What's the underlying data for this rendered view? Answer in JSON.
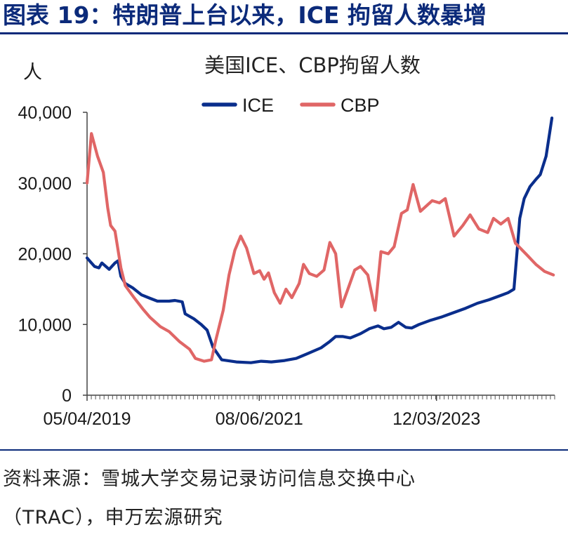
{
  "header": {
    "title": "图表 19：特朗普上台以来，ICE 拘留人数暴增"
  },
  "source": {
    "line1": "资料来源：雪城大学交易记录访问信息交换中心",
    "line2": "（TRAC），申万宏源研究"
  },
  "colors": {
    "header": "#0b2a7a",
    "ice": "#0a2e8c",
    "cbp": "#e06666"
  },
  "chart_data": {
    "type": "line",
    "title": "美国ICE、CBP拘留人数",
    "ylabel": "人",
    "ylim": [
      0,
      40000
    ],
    "yticks": [
      0,
      10000,
      20000,
      30000,
      40000
    ],
    "ytick_labels": [
      "0",
      "10,000",
      "20,000",
      "30,000",
      "40,000"
    ],
    "xlim": [
      "2019-05-04",
      "2025-06-21"
    ],
    "xtick_labels": [
      "05/04/2019",
      "08/06/2021",
      "12/03/2023"
    ],
    "xtick_dates": [
      "2019-05-04",
      "2021-08-06",
      "2023-12-03"
    ],
    "legend_position": "top-center",
    "grid": false,
    "series": [
      {
        "name": "ICE",
        "color": "#0a2e8c",
        "points": [
          [
            "2019-05-04",
            19400
          ],
          [
            "2019-06-09",
            18200
          ],
          [
            "2019-06-30",
            18000
          ],
          [
            "2019-07-14",
            18700
          ],
          [
            "2019-08-18",
            17800
          ],
          [
            "2019-09-15",
            18700
          ],
          [
            "2019-09-29",
            19000
          ],
          [
            "2019-10-13",
            16800
          ],
          [
            "2019-11-03",
            15800
          ],
          [
            "2019-12-08",
            15200
          ],
          [
            "2020-01-19",
            14200
          ],
          [
            "2020-03-01",
            13700
          ],
          [
            "2020-04-05",
            13300
          ],
          [
            "2020-05-31",
            13300
          ],
          [
            "2020-06-28",
            13400
          ],
          [
            "2020-08-02",
            13200
          ],
          [
            "2020-08-16",
            11500
          ],
          [
            "2020-09-27",
            10800
          ],
          [
            "2020-11-01",
            10000
          ],
          [
            "2020-11-29",
            9200
          ],
          [
            "2020-12-27",
            6800
          ],
          [
            "2021-02-07",
            5000
          ],
          [
            "2021-04-18",
            4700
          ],
          [
            "2021-06-27",
            4600
          ],
          [
            "2021-08-15",
            4800
          ],
          [
            "2021-10-03",
            4700
          ],
          [
            "2021-12-05",
            4900
          ],
          [
            "2022-01-30",
            5200
          ],
          [
            "2022-03-27",
            5900
          ],
          [
            "2022-05-29",
            6700
          ],
          [
            "2022-07-10",
            7600
          ],
          [
            "2022-08-07",
            8300
          ],
          [
            "2022-09-11",
            8300
          ],
          [
            "2022-10-16",
            8100
          ],
          [
            "2022-12-04",
            8700
          ],
          [
            "2023-01-15",
            9400
          ],
          [
            "2023-02-26",
            9800
          ],
          [
            "2023-03-26",
            9400
          ],
          [
            "2023-04-30",
            9600
          ],
          [
            "2023-06-04",
            10300
          ],
          [
            "2023-07-09",
            9600
          ],
          [
            "2023-08-06",
            9500
          ],
          [
            "2023-09-10",
            10000
          ],
          [
            "2023-11-05",
            10600
          ],
          [
            "2023-12-31",
            11100
          ],
          [
            "2024-02-25",
            11700
          ],
          [
            "2024-04-21",
            12300
          ],
          [
            "2024-06-16",
            13000
          ],
          [
            "2024-08-11",
            13500
          ],
          [
            "2024-10-06",
            14100
          ],
          [
            "2024-11-10",
            14500
          ],
          [
            "2024-12-08",
            15000
          ],
          [
            "2024-12-22",
            20000
          ],
          [
            "2025-01-05",
            25000
          ],
          [
            "2025-01-26",
            27800
          ],
          [
            "2025-02-23",
            29500
          ],
          [
            "2025-03-23",
            30500
          ],
          [
            "2025-04-13",
            31200
          ],
          [
            "2025-05-11",
            33800
          ],
          [
            "2025-06-08",
            39200
          ]
        ]
      },
      {
        "name": "CBP",
        "color": "#e06666",
        "points": [
          [
            "2019-05-04",
            30000
          ],
          [
            "2019-05-25",
            37000
          ],
          [
            "2019-06-23",
            33800
          ],
          [
            "2019-07-21",
            31500
          ],
          [
            "2019-08-11",
            26500
          ],
          [
            "2019-08-25",
            24000
          ],
          [
            "2019-09-15",
            23200
          ],
          [
            "2019-10-13",
            18000
          ],
          [
            "2019-11-03",
            15500
          ],
          [
            "2019-12-15",
            13800
          ],
          [
            "2020-01-26",
            12200
          ],
          [
            "2020-03-01",
            11000
          ],
          [
            "2020-04-19",
            9700
          ],
          [
            "2020-05-31",
            9000
          ],
          [
            "2020-07-19",
            7600
          ],
          [
            "2020-09-06",
            6500
          ],
          [
            "2020-10-04",
            5200
          ],
          [
            "2020-11-15",
            4800
          ],
          [
            "2020-12-20",
            5000
          ],
          [
            "2021-01-10",
            7800
          ],
          [
            "2021-02-14",
            12000
          ],
          [
            "2021-03-14",
            17000
          ],
          [
            "2021-04-11",
            20500
          ],
          [
            "2021-05-09",
            22500
          ],
          [
            "2021-06-06",
            20800
          ],
          [
            "2021-07-11",
            17200
          ],
          [
            "2021-08-08",
            17600
          ],
          [
            "2021-08-29",
            16400
          ],
          [
            "2021-09-19",
            17300
          ],
          [
            "2021-10-17",
            14500
          ],
          [
            "2021-11-14",
            13000
          ],
          [
            "2021-12-12",
            15000
          ],
          [
            "2022-01-09",
            13800
          ],
          [
            "2022-02-13",
            15800
          ],
          [
            "2022-03-06",
            18500
          ],
          [
            "2022-04-03",
            17200
          ],
          [
            "2022-05-08",
            16800
          ],
          [
            "2022-06-12",
            17700
          ],
          [
            "2022-07-10",
            21600
          ],
          [
            "2022-08-07",
            20000
          ],
          [
            "2022-09-04",
            12500
          ],
          [
            "2022-10-02",
            14800
          ],
          [
            "2022-11-06",
            17700
          ],
          [
            "2022-12-04",
            18200
          ],
          [
            "2023-01-08",
            17000
          ],
          [
            "2023-02-12",
            12000
          ],
          [
            "2023-03-12",
            20300
          ],
          [
            "2023-04-16",
            20000
          ],
          [
            "2023-05-14",
            21000
          ],
          [
            "2023-06-18",
            25700
          ],
          [
            "2023-07-16",
            26200
          ],
          [
            "2023-08-13",
            29800
          ],
          [
            "2023-09-17",
            26000
          ],
          [
            "2023-11-12",
            27500
          ],
          [
            "2023-12-17",
            27200
          ],
          [
            "2024-01-14",
            27800
          ],
          [
            "2024-02-25",
            22500
          ],
          [
            "2024-04-07",
            24000
          ],
          [
            "2024-05-12",
            25500
          ],
          [
            "2024-06-23",
            23500
          ],
          [
            "2024-08-04",
            23000
          ],
          [
            "2024-09-01",
            25000
          ],
          [
            "2024-10-06",
            24200
          ],
          [
            "2024-11-10",
            25000
          ],
          [
            "2024-12-15",
            21500
          ],
          [
            "2025-02-09",
            19800
          ],
          [
            "2025-03-23",
            18500
          ],
          [
            "2025-05-04",
            17500
          ],
          [
            "2025-06-15",
            17000
          ]
        ]
      }
    ]
  }
}
